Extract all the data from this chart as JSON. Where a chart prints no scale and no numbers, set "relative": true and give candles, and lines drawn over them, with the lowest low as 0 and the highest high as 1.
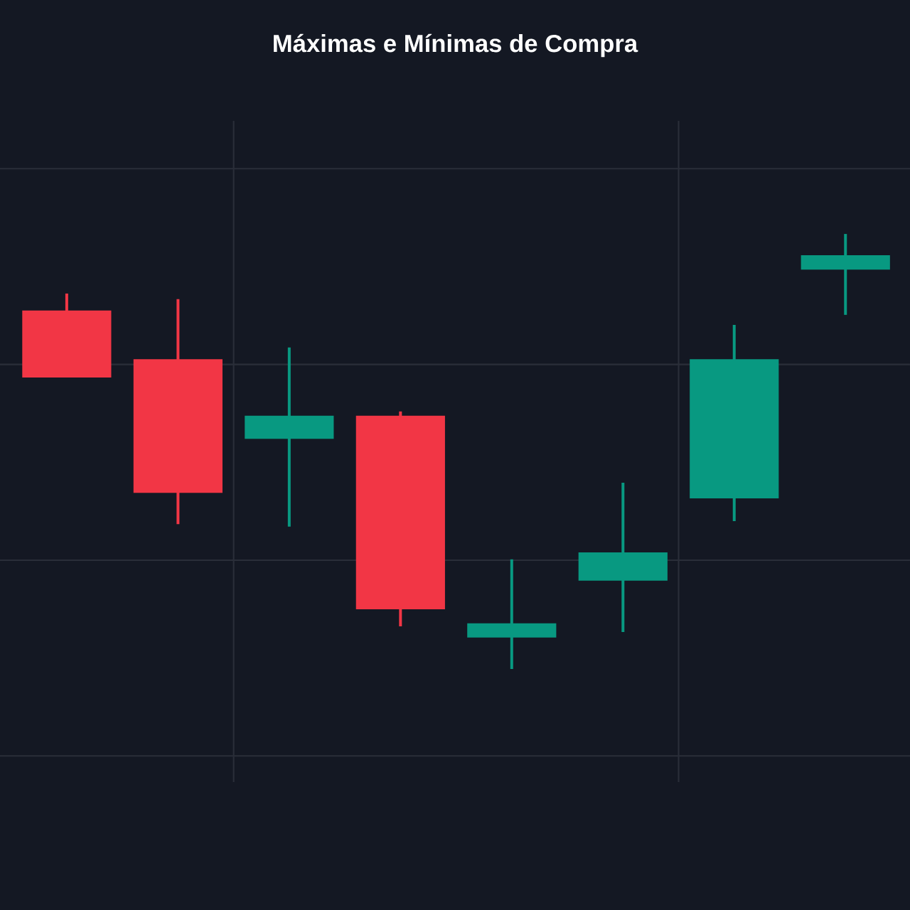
{
  "chart_data": {
    "type": "candlestick",
    "title": "Máximas e Mínimas de Compra",
    "relative": true,
    "grid": true,
    "categories": [
      null,
      null,
      null,
      null,
      null,
      null,
      null,
      null
    ],
    "ohlc": [
      [
        0.824,
        0.863,
        0.67,
        0.67
      ],
      [
        0.712,
        0.85,
        0.333,
        0.405
      ],
      [
        0.529,
        0.739,
        0.327,
        0.582
      ],
      [
        0.582,
        0.592,
        0.098,
        0.137
      ],
      [
        0.072,
        0.252,
        0.0,
        0.105
      ],
      [
        0.203,
        0.428,
        0.085,
        0.268
      ],
      [
        0.392,
        0.791,
        0.34,
        0.712
      ],
      [
        0.918,
        1.0,
        0.814,
        0.951
      ]
    ],
    "colors": [
      "#f23645",
      "#f23645",
      "#089981",
      "#f23645",
      "#089981",
      "#089981",
      "#089981",
      "#089981"
    ]
  }
}
